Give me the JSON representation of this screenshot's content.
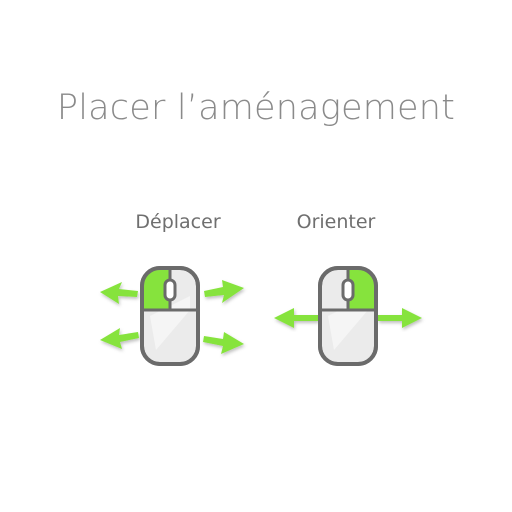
{
  "title": "Placer l’aménagement",
  "instructions": [
    {
      "label": "Déplacer",
      "icon": "mouse-left-click-move-icon"
    },
    {
      "label": "Orienter",
      "icon": "mouse-right-click-rotate-icon"
    }
  ],
  "colors": {
    "accent": "#86e33d",
    "mouse_outline": "#6b6b6b",
    "mouse_body": "#e9e9e9",
    "text": "#8a8a8a"
  }
}
